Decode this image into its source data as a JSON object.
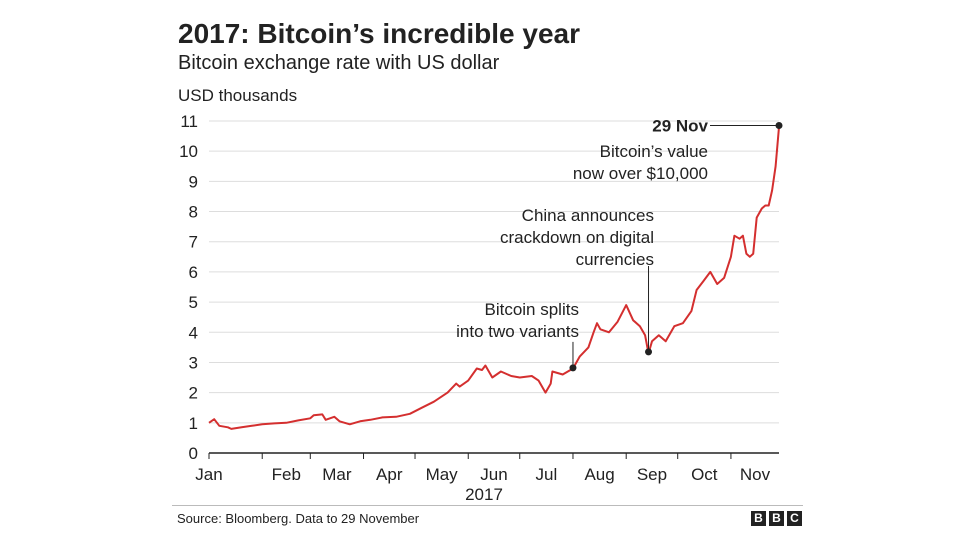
{
  "header": {
    "title": "2017: Bitcoin’s incredible year",
    "subtitle": "Bitcoin exchange rate with US dollar",
    "unit_label": "USD thousands"
  },
  "footer": {
    "source": "Source: Bloomberg. Data to 29 November",
    "logo": [
      "B",
      "B",
      "C"
    ]
  },
  "chart_data": {
    "type": "line",
    "ylabel": "USD thousands",
    "ylim": [
      0,
      11
    ],
    "yticks": [
      0,
      1,
      2,
      3,
      4,
      5,
      6,
      7,
      8,
      9,
      10,
      11
    ],
    "xlim": [
      "2017-01-01",
      "2017-11-29"
    ],
    "xtick_labels": [
      "Jan",
      "Feb",
      "Mar",
      "Apr",
      "May",
      "Jun",
      "Jul",
      "Aug",
      "Sep",
      "Oct",
      "Nov"
    ],
    "xaxis_year": "2017",
    "grid": "horizontal",
    "line_color": "#d42f2f",
    "series": [
      {
        "points": [
          [
            "2017-01-01",
            1.0
          ],
          [
            "2017-01-04",
            1.12
          ],
          [
            "2017-01-07",
            0.9
          ],
          [
            "2017-01-12",
            0.85
          ],
          [
            "2017-01-14",
            0.8
          ],
          [
            "2017-01-20",
            0.85
          ],
          [
            "2017-01-26",
            0.9
          ],
          [
            "2017-02-01",
            0.95
          ],
          [
            "2017-02-08",
            0.98
          ],
          [
            "2017-02-15",
            1.0
          ],
          [
            "2017-02-22",
            1.08
          ],
          [
            "2017-03-01",
            1.15
          ],
          [
            "2017-03-03",
            1.25
          ],
          [
            "2017-03-08",
            1.28
          ],
          [
            "2017-03-10",
            1.1
          ],
          [
            "2017-03-15",
            1.2
          ],
          [
            "2017-03-18",
            1.05
          ],
          [
            "2017-03-24",
            0.95
          ],
          [
            "2017-03-30",
            1.05
          ],
          [
            "2017-04-05",
            1.1
          ],
          [
            "2017-04-12",
            1.18
          ],
          [
            "2017-04-20",
            1.2
          ],
          [
            "2017-04-28",
            1.3
          ],
          [
            "2017-05-05",
            1.5
          ],
          [
            "2017-05-12",
            1.7
          ],
          [
            "2017-05-20",
            2.0
          ],
          [
            "2017-05-25",
            2.3
          ],
          [
            "2017-05-27",
            2.2
          ],
          [
            "2017-06-01",
            2.4
          ],
          [
            "2017-06-06",
            2.8
          ],
          [
            "2017-06-09",
            2.75
          ],
          [
            "2017-06-11",
            2.9
          ],
          [
            "2017-06-15",
            2.5
          ],
          [
            "2017-06-20",
            2.7
          ],
          [
            "2017-06-26",
            2.55
          ],
          [
            "2017-07-01",
            2.5
          ],
          [
            "2017-07-08",
            2.55
          ],
          [
            "2017-07-12",
            2.4
          ],
          [
            "2017-07-16",
            2.0
          ],
          [
            "2017-07-19",
            2.3
          ],
          [
            "2017-07-20",
            2.7
          ],
          [
            "2017-07-26",
            2.6
          ],
          [
            "2017-08-01",
            2.8
          ],
          [
            "2017-08-05",
            3.2
          ],
          [
            "2017-08-10",
            3.5
          ],
          [
            "2017-08-13",
            4.0
          ],
          [
            "2017-08-15",
            4.3
          ],
          [
            "2017-08-17",
            4.1
          ],
          [
            "2017-08-22",
            4.0
          ],
          [
            "2017-08-27",
            4.35
          ],
          [
            "2017-09-01",
            4.9
          ],
          [
            "2017-09-05",
            4.4
          ],
          [
            "2017-09-09",
            4.2
          ],
          [
            "2017-09-12",
            3.9
          ],
          [
            "2017-09-14",
            3.3
          ],
          [
            "2017-09-16",
            3.7
          ],
          [
            "2017-09-20",
            3.9
          ],
          [
            "2017-09-24",
            3.7
          ],
          [
            "2017-09-29",
            4.2
          ],
          [
            "2017-10-04",
            4.3
          ],
          [
            "2017-10-09",
            4.7
          ],
          [
            "2017-10-12",
            5.4
          ],
          [
            "2017-10-16",
            5.7
          ],
          [
            "2017-10-20",
            6.0
          ],
          [
            "2017-10-24",
            5.6
          ],
          [
            "2017-10-28",
            5.8
          ],
          [
            "2017-11-01",
            6.5
          ],
          [
            "2017-11-03",
            7.2
          ],
          [
            "2017-11-06",
            7.1
          ],
          [
            "2017-11-08",
            7.2
          ],
          [
            "2017-11-10",
            6.6
          ],
          [
            "2017-11-12",
            6.5
          ],
          [
            "2017-11-14",
            6.6
          ],
          [
            "2017-11-16",
            7.8
          ],
          [
            "2017-11-19",
            8.1
          ],
          [
            "2017-11-21",
            8.2
          ],
          [
            "2017-11-23",
            8.2
          ],
          [
            "2017-11-25",
            8.7
          ],
          [
            "2017-11-27",
            9.5
          ],
          [
            "2017-11-29",
            10.8
          ]
        ]
      }
    ],
    "annotations": [
      {
        "id": "split",
        "lines": [
          "Bitcoin splits",
          "into two variants"
        ],
        "x": "2017-08-01",
        "y": 2.82
      },
      {
        "id": "china",
        "lines": [
          "China announces",
          "crackdown on digital",
          "currencies"
        ],
        "x": "2017-09-14",
        "y": 3.35
      },
      {
        "id": "peak",
        "bold": "29 Nov",
        "lines": [
          "Bitcoin’s value",
          "now over $10,000"
        ],
        "x": "2017-11-29",
        "y": 10.85
      }
    ]
  }
}
